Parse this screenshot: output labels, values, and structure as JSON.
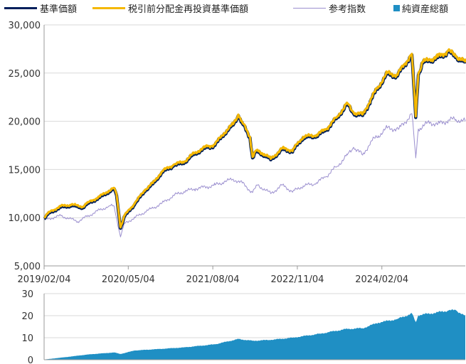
{
  "legend": [
    {
      "label": "基準価額",
      "color": "#001f5b",
      "kind": "line"
    },
    {
      "label": "税引前分配金再投資基準価額",
      "color": "#f5b800",
      "kind": "line"
    },
    {
      "label": "参考指数",
      "color": "#9b8fcf",
      "kind": "line"
    },
    {
      "label": "純資産総額",
      "color": "#1f8fc4",
      "kind": "square"
    }
  ],
  "chart_data": [
    {
      "type": "line",
      "title": "",
      "xlabel": "",
      "ylabel": "",
      "ylim": [
        5000,
        30000
      ],
      "yticks": [
        "5,000",
        "10,000",
        "15,000",
        "20,000",
        "25,000",
        "30,000"
      ],
      "xticks": [
        "2019/02/04",
        "2020/05/04",
        "2021/08/04",
        "2022/11/04",
        "2024/02/04"
      ],
      "x_range": [
        "2019/02/04",
        "2025/04/30"
      ],
      "grid": true,
      "legend_position": "top",
      "series": [
        {
          "name": "基準価額",
          "color": "#001f5b",
          "points": [
            [
              "2019/02/04",
              9900
            ],
            [
              "2019/03/04",
              10500
            ],
            [
              "2019/05/06",
              11100
            ],
            [
              "2019/07/01",
              11250
            ],
            [
              "2019/09/02",
              11050
            ],
            [
              "2019/10/01",
              11500
            ],
            [
              "2019/12/02",
              12100
            ],
            [
              "2020/01/20",
              12700
            ],
            [
              "2020/02/18",
              13000
            ],
            [
              "2020/03/02",
              12300
            ],
            [
              "2020/03/23",
              8900
            ],
            [
              "2020/04/13",
              10100
            ],
            [
              "2020/06/08",
              11400
            ],
            [
              "2020/08/03",
              12800
            ],
            [
              "2020/09/14",
              13500
            ],
            [
              "2020/11/02",
              14700
            ],
            [
              "2021/01/04",
              15400
            ],
            [
              "2021/03/01",
              15700
            ],
            [
              "2021/05/03",
              16700
            ],
            [
              "2021/07/05",
              17300
            ],
            [
              "2021/08/16",
              17500
            ],
            [
              "2021/10/04",
              18700
            ],
            [
              "2021/11/22",
              19600
            ],
            [
              "2021/12/20",
              20600
            ],
            [
              "2022/01/10",
              19800
            ],
            [
              "2022/02/21",
              18300
            ],
            [
              "2022/03/07",
              16200
            ],
            [
              "2022/03/28",
              16900
            ],
            [
              "2022/05/09",
              16500
            ],
            [
              "2022/06/13",
              16000
            ],
            [
              "2022/08/15",
              17100
            ],
            [
              "2022/10/10",
              16900
            ],
            [
              "2022/12/05",
              18300
            ],
            [
              "2023/02/06",
              18400
            ],
            [
              "2023/04/03",
              19000
            ],
            [
              "2023/06/05",
              20300
            ],
            [
              "2023/07/31",
              21800
            ],
            [
              "2023/09/04",
              20800
            ],
            [
              "2023/10/23",
              20600
            ],
            [
              "2023/12/04",
              22100
            ],
            [
              "2024/01/15",
              23500
            ],
            [
              "2024/03/04",
              24900
            ],
            [
              "2024/04/29",
              24700
            ],
            [
              "2024/06/03",
              25800
            ],
            [
              "2024/07/15",
              26900
            ],
            [
              "2024/08/05",
              20400
            ],
            [
              "2024/08/19",
              24800
            ],
            [
              "2024/09/09",
              26000
            ],
            [
              "2024/10/21",
              26300
            ],
            [
              "2024/12/02",
              26600
            ],
            [
              "2025/01/27",
              27200
            ],
            [
              "2025/03/10",
              26700
            ],
            [
              "2025/04/30",
              26000
            ]
          ]
        },
        {
          "name": "税引前分配金再投資基準価額",
          "color": "#f5b800",
          "points": [
            [
              "2019/02/04",
              10000
            ],
            [
              "2019/03/04",
              10600
            ],
            [
              "2019/05/06",
              11200
            ],
            [
              "2019/07/01",
              11350
            ],
            [
              "2019/09/02",
              11150
            ],
            [
              "2019/10/01",
              11600
            ],
            [
              "2019/12/02",
              12200
            ],
            [
              "2020/01/20",
              12800
            ],
            [
              "2020/02/18",
              13100
            ],
            [
              "2020/03/02",
              12400
            ],
            [
              "2020/03/23",
              9000
            ],
            [
              "2020/04/13",
              10200
            ],
            [
              "2020/06/08",
              11500
            ],
            [
              "2020/08/03",
              12900
            ],
            [
              "2020/09/14",
              13600
            ],
            [
              "2020/11/02",
              14800
            ],
            [
              "2021/01/04",
              15500
            ],
            [
              "2021/03/01",
              15800
            ],
            [
              "2021/05/03",
              16800
            ],
            [
              "2021/07/05",
              17400
            ],
            [
              "2021/08/16",
              17600
            ],
            [
              "2021/10/04",
              18800
            ],
            [
              "2021/11/22",
              19700
            ],
            [
              "2021/12/20",
              20700
            ],
            [
              "2022/01/10",
              19900
            ],
            [
              "2022/02/21",
              18400
            ],
            [
              "2022/03/07",
              16300
            ],
            [
              "2022/03/28",
              17000
            ],
            [
              "2022/05/09",
              16600
            ],
            [
              "2022/06/13",
              16100
            ],
            [
              "2022/08/15",
              17200
            ],
            [
              "2022/10/10",
              17000
            ],
            [
              "2022/12/05",
              18400
            ],
            [
              "2023/02/06",
              18500
            ],
            [
              "2023/04/03",
              19100
            ],
            [
              "2023/06/05",
              20400
            ],
            [
              "2023/07/31",
              21900
            ],
            [
              "2023/09/04",
              20900
            ],
            [
              "2023/10/23",
              20700
            ],
            [
              "2023/12/04",
              22200
            ],
            [
              "2024/01/15",
              23600
            ],
            [
              "2024/03/04",
              25000
            ],
            [
              "2024/04/29",
              24800
            ],
            [
              "2024/06/03",
              25900
            ],
            [
              "2024/07/15",
              27000
            ],
            [
              "2024/08/05",
              20500
            ],
            [
              "2024/08/19",
              24900
            ],
            [
              "2024/09/09",
              26100
            ],
            [
              "2024/10/21",
              26400
            ],
            [
              "2024/12/02",
              26700
            ],
            [
              "2025/01/27",
              27300
            ],
            [
              "2025/03/10",
              26800
            ],
            [
              "2025/04/30",
              26100
            ]
          ]
        },
        {
          "name": "参考指数",
          "color": "#9b8fcf",
          "points": [
            [
              "2019/02/04",
              9800
            ],
            [
              "2019/05/06",
              10200
            ],
            [
              "2019/08/05",
              9600
            ],
            [
              "2019/10/01",
              10200
            ],
            [
              "2019/12/02",
              10800
            ],
            [
              "2020/01/20",
              11200
            ],
            [
              "2020/02/18",
              11200
            ],
            [
              "2020/03/23",
              8000
            ],
            [
              "2020/04/13",
              9400
            ],
            [
              "2020/06/08",
              10000
            ],
            [
              "2020/08/03",
              10600
            ],
            [
              "2020/09/14",
              11000
            ],
            [
              "2020/11/02",
              11500
            ],
            [
              "2021/01/04",
              12300
            ],
            [
              "2021/03/01",
              12700
            ],
            [
              "2021/05/03",
              13000
            ],
            [
              "2021/07/05",
              13200
            ],
            [
              "2021/08/16",
              13400
            ],
            [
              "2021/10/04",
              13700
            ],
            [
              "2021/11/22",
              14000
            ],
            [
              "2022/01/10",
              13600
            ],
            [
              "2022/03/07",
              12600
            ],
            [
              "2022/04/04",
              13400
            ],
            [
              "2022/06/13",
              12500
            ],
            [
              "2022/08/15",
              13400
            ],
            [
              "2022/10/10",
              12700
            ],
            [
              "2022/12/05",
              13300
            ],
            [
              "2023/02/06",
              13500
            ],
            [
              "2023/04/03",
              14200
            ],
            [
              "2023/06/05",
              15300
            ],
            [
              "2023/07/31",
              16500
            ],
            [
              "2023/09/04",
              17300
            ],
            [
              "2023/10/23",
              16500
            ],
            [
              "2023/12/04",
              17800
            ],
            [
              "2024/01/15",
              18500
            ],
            [
              "2024/03/04",
              19300
            ],
            [
              "2024/05/06",
              19200
            ],
            [
              "2024/07/15",
              20800
            ],
            [
              "2024/08/05",
              16200
            ],
            [
              "2024/08/19",
              19200
            ],
            [
              "2024/10/21",
              19900
            ],
            [
              "2024/12/02",
              19700
            ],
            [
              "2025/01/27",
              20100
            ],
            [
              "2025/03/10",
              20200
            ],
            [
              "2025/04/30",
              20000
            ]
          ]
        }
      ]
    },
    {
      "type": "area",
      "title": "",
      "xlabel": "",
      "ylabel": "",
      "ylim": [
        0,
        30
      ],
      "yticks": [
        "0",
        "10",
        "20",
        "30"
      ],
      "grid": true,
      "series": [
        {
          "name": "純資産総額",
          "color": "#1f8fc4",
          "points": [
            [
              "2019/02/04",
              0.1
            ],
            [
              "2019/06/03",
              1.2
            ],
            [
              "2019/10/01",
              2.4
            ],
            [
              "2020/02/18",
              3.3
            ],
            [
              "2020/03/23",
              2.6
            ],
            [
              "2020/06/08",
              4.2
            ],
            [
              "2020/10/05",
              4.8
            ],
            [
              "2021/03/01",
              5.6
            ],
            [
              "2021/08/16",
              7.0
            ],
            [
              "2021/12/20",
              9.4
            ],
            [
              "2022/03/07",
              8.6
            ],
            [
              "2022/06/13",
              9.0
            ],
            [
              "2022/10/10",
              10.0
            ],
            [
              "2023/03/06",
              11.8
            ],
            [
              "2023/07/31",
              14.0
            ],
            [
              "2023/10/23",
              14.3
            ],
            [
              "2024/01/15",
              16.8
            ],
            [
              "2024/04/29",
              18.5
            ],
            [
              "2024/07/15",
              21.0
            ],
            [
              "2024/08/05",
              17.0
            ],
            [
              "2024/08/19",
              20.2
            ],
            [
              "2024/12/02",
              21.5
            ],
            [
              "2025/01/27",
              22.3
            ],
            [
              "2025/03/10",
              22.5
            ],
            [
              "2025/04/30",
              19.8
            ]
          ]
        }
      ]
    }
  ]
}
